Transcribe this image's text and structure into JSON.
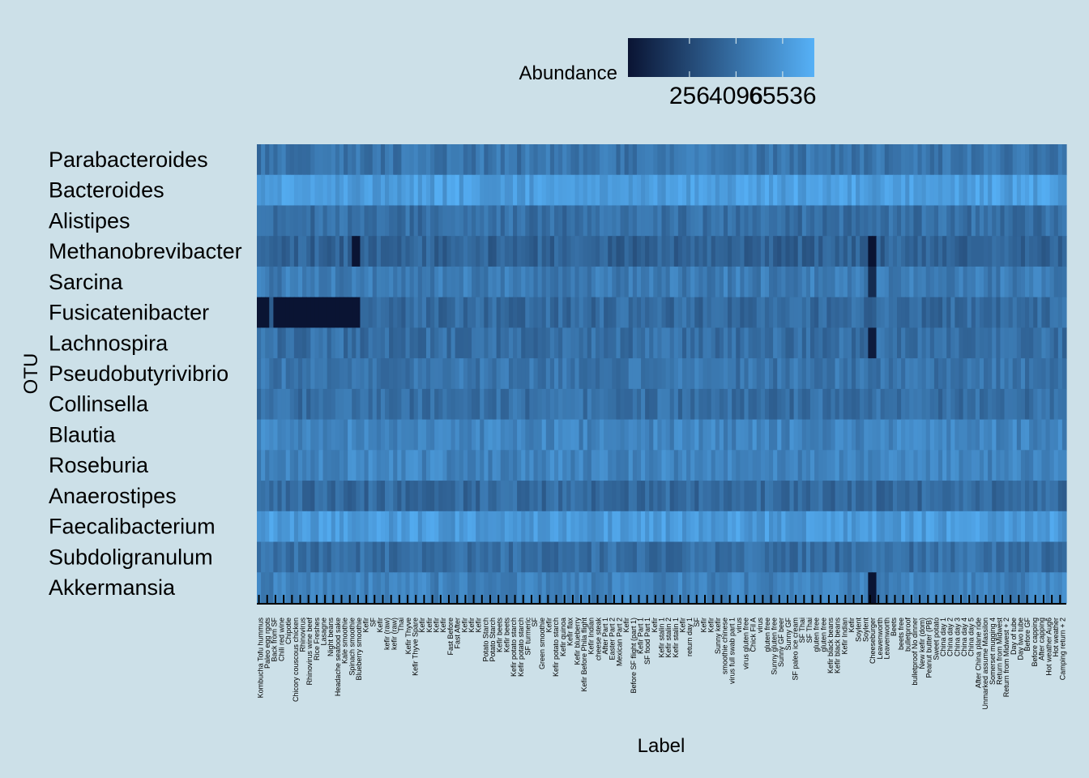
{
  "chart_data": {
    "type": "heatmap",
    "xlabel": "Label",
    "ylabel": "OTU",
    "legend": {
      "title": "Abundance",
      "ticks": [
        "256",
        "4096",
        "65536"
      ],
      "colors": [
        "#0a1433",
        "#56b1f7"
      ],
      "placement": "top"
    },
    "rows": [
      "Parabacteroides",
      "Bacteroides",
      "Alistipes",
      "Methanobrevibacter",
      "Sarcina",
      "Fusicatenibacter",
      "Lachnospira",
      "Pseudobutyrivibrio",
      "Collinsella",
      "Blautia",
      "Roseburia",
      "Anaerostipes",
      "Faecalibacterium",
      "Subdoligranulum",
      "Akkermansia"
    ],
    "row_levels": [
      0.62,
      0.88,
      0.58,
      0.5,
      0.66,
      0.55,
      0.58,
      0.62,
      0.58,
      0.72,
      0.72,
      0.55,
      0.85,
      0.58,
      0.7
    ],
    "special_cells": [
      {
        "row": "Fusicatenibacter",
        "columns": [
          0,
          1,
          2
        ],
        "level": 0.0
      },
      {
        "row": "Fusicatenibacter",
        "columns": [
          4,
          5,
          6,
          7,
          8,
          9,
          10,
          11,
          12,
          13,
          14,
          15,
          16,
          17,
          18,
          19,
          20,
          21,
          22,
          23,
          24
        ],
        "level": 0.0
      },
      {
        "row": "Methanobrevibacter",
        "columns": [
          23,
          24
        ],
        "level": 0.0
      },
      {
        "row": "Methanobrevibacter",
        "columns": [
          148,
          149
        ],
        "level": 0.0
      },
      {
        "row": "Lachnospira",
        "columns": [
          148,
          149
        ],
        "level": 0.05
      },
      {
        "row": "Akkermansia",
        "columns": [
          148,
          149
        ],
        "level": 0.0
      },
      {
        "row": "Sarcina",
        "columns": [
          148,
          149
        ],
        "level": 0.15
      }
    ],
    "x_labels": [
      "Kombucha Tofu hummus",
      "Paleo egg rgots",
      "Back from SF",
      "Chili red wine",
      "Chipotle",
      "Chicory couscous chicken",
      "Rhinovirus",
      "Rhinovirus wine beef",
      "Rice Freshes",
      "Lasagne",
      "Night beans",
      "Headache seafood sake",
      "Kale smoothie",
      "Spinach smoothie",
      "Blueberry smoothie",
      "Kefir",
      "SF",
      "Kefir",
      "kefir (raw)",
      "kefir (raw)",
      "Thai",
      "Kefir Thyve",
      "Kefir Thyve Spare",
      "Kefir",
      "Kefir",
      "Kefir",
      "Kefir",
      "Fast Before",
      "Fast After",
      "Kefir",
      "Kefir",
      "Kefir",
      "Potato Starch",
      "Potato Starch",
      "Kefir beets",
      "Kefir beets",
      "Kefir potato starch",
      "Kefir potato starch",
      "SF turmeric",
      "SF",
      "Green smoothie",
      "Kefir",
      "Kefir potato starch",
      "Kefir quinoa",
      "Kefir flax",
      "Kefir blueberry",
      "Kefir Before Phila flight",
      "Kefir Indian",
      "cheese steak",
      "After Part 1",
      "Easter Part 2",
      "Mexican Part 2",
      "Kefir",
      "Before SF flight (part 1)",
      "Kefir Part 1",
      "SF food Part 1",
      "Kefir",
      "Kefir stalin 1",
      "Kefir stalin 2",
      "Kefir stalin 1",
      "Kefir",
      "return day 1",
      "SF",
      "Kefir",
      "Kefir",
      "Sunny kefir",
      "smoothie chinese",
      "virus full swab part 1",
      "virus",
      "virus gluten free",
      "Chick Fil A",
      "virus",
      "gluten free",
      "Sunny gluten free",
      "Sunny GF beer",
      "Sunny GF",
      "SF paleo ice cream",
      "SF Thai",
      "SF Thai",
      "gluten free",
      "gluten free",
      "Kefir black beans",
      "Kefir black beans",
      "Kefir Indian",
      "Kefir",
      "Soylent",
      "Soylent",
      "Cheeseburger",
      "Leavenworth",
      "Leavenworth",
      "Beets",
      "beets free",
      "bulletproof",
      "bulletproof No dinner",
      "New kefir (dom)",
      "Peanut butter (PB)",
      "Sweet potato",
      "China day 1",
      "China day 2",
      "China day 3",
      "China day 4",
      "China day 5",
      "After China plane ride",
      "Unmarked assume Massilon",
      "Somerset mugging 4",
      "Return from Midwest",
      "Return from Midwest + 2",
      "Day of tube",
      "Day two tube",
      "Before GF",
      "Before capping",
      "After capping",
      "Hot weather Aug6",
      "Hot weather",
      "Camping return + 2"
    ],
    "num_columns": 196
  }
}
